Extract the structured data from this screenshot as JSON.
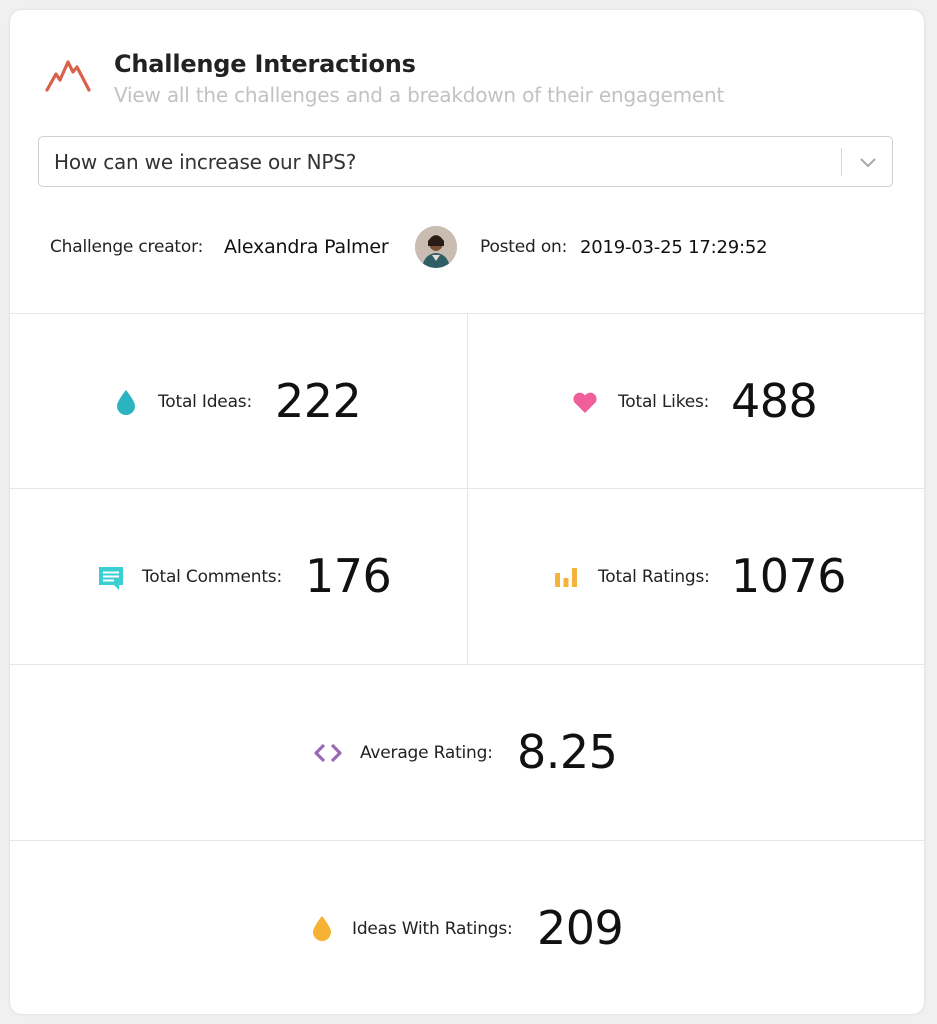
{
  "header": {
    "title": "Challenge Interactions",
    "subtitle": "View all the challenges and a breakdown of their engagement",
    "logo_icon": "mountain-logo-icon"
  },
  "challenge_select": {
    "value": "How can we increase our NPS?",
    "icon": "chevron-down-icon"
  },
  "meta": {
    "creator_label": "Challenge creator:",
    "creator_name": "Alexandra Palmer",
    "posted_label": "Posted on:",
    "posted_value": "2019-03-25 17:29:52"
  },
  "stats": {
    "total_ideas": {
      "label": "Total Ideas:",
      "value": "222",
      "icon": "drop-icon",
      "color": "#2bb3c0"
    },
    "total_likes": {
      "label": "Total Likes:",
      "value": "488",
      "icon": "heart-icon",
      "color": "#ee5f9b"
    },
    "total_comments": {
      "label": "Total Comments:",
      "value": "176",
      "icon": "comment-icon",
      "color": "#3ccfd2"
    },
    "total_ratings": {
      "label": "Total Ratings:",
      "value": "1076",
      "icon": "bar-chart-icon",
      "color": "#f4b43c"
    },
    "average_rating": {
      "label": "Average Rating:",
      "value": "8.25",
      "icon": "code-brackets-icon",
      "color": "#9a6bb5"
    },
    "ideas_with_ratings": {
      "label": "Ideas With Ratings:",
      "value": "209",
      "icon": "drop-icon",
      "color": "#f5b235"
    }
  },
  "colors": {
    "logo": "#d9604a"
  }
}
